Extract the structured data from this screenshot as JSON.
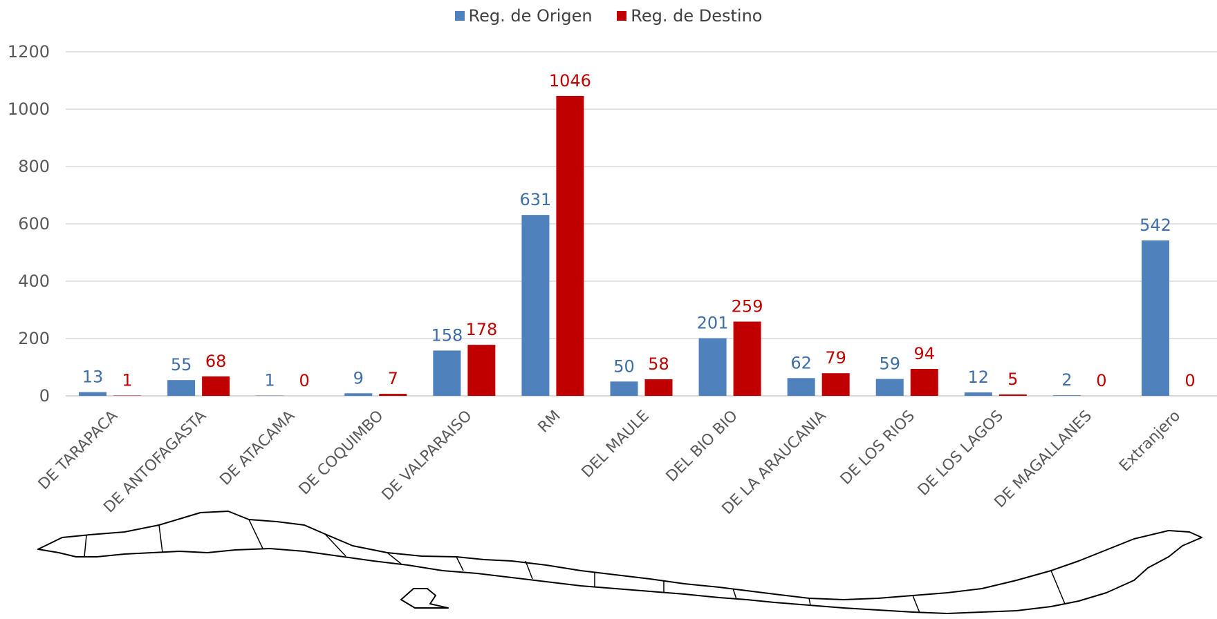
{
  "chart_data": {
    "type": "bar",
    "categories": [
      "DE TARAPACA",
      "DE ANTOFAGASTA",
      "DE ATACAMA",
      "DE COQUIMBO",
      "DE VALPARAISO",
      "RM",
      "DEL MAULE",
      "DEL BIO BIO",
      "DE LA ARAUCANIA",
      "DE LOS RIOS",
      "DE LOS LAGOS",
      "DE MAGALLANES",
      "Extranjero"
    ],
    "series": [
      {
        "name": "Reg. de Origen",
        "color": "#4f81bd",
        "label_color": "#3f6ea6",
        "values": [
          13,
          55,
          1,
          9,
          158,
          631,
          50,
          201,
          62,
          59,
          12,
          2,
          542
        ]
      },
      {
        "name": "Reg. de Destino",
        "color": "#c00000",
        "label_color": "#c00000",
        "values": [
          1,
          68,
          0,
          7,
          178,
          1046,
          58,
          259,
          79,
          94,
          5,
          0,
          0
        ]
      }
    ],
    "ylim": [
      0,
      1200
    ],
    "yticks": [
      0,
      200,
      400,
      600,
      800,
      1000,
      1200
    ],
    "grid": true,
    "legend_position": "top-center",
    "data_labels": true
  },
  "decoration": {
    "map_icon": "chile-map-outline"
  }
}
